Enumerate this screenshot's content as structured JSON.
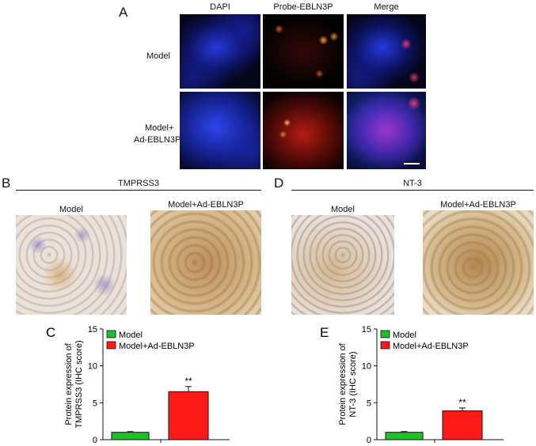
{
  "panel_a": {
    "letter": "A",
    "columns": [
      "DAPI",
      "Probe-EBLN3P",
      "Merge"
    ],
    "rows": [
      {
        "label_lines": [
          "Model"
        ]
      },
      {
        "label_lines": [
          "Model+",
          "Ad-EBLN3P"
        ]
      }
    ]
  },
  "panel_b": {
    "letter": "B",
    "title": "TMPRSS3",
    "images": [
      "Model",
      "Model+Ad-EBLN3P"
    ]
  },
  "panel_d": {
    "letter": "D",
    "title": "NT-3",
    "images": [
      "Model",
      "Model+Ad-EBLN3P"
    ]
  },
  "colors": {
    "model": "#1fbf2a",
    "ad": "#ff1a1a"
  },
  "chart_data": [
    {
      "panel": "C",
      "type": "bar",
      "categories": [
        "Model",
        "Model+Ad-EBLN3P"
      ],
      "values": [
        1.0,
        6.5
      ],
      "errors": [
        0.1,
        0.7
      ],
      "significance": [
        "",
        "**"
      ],
      "ylabel_lines": [
        "Protein expression of",
        "TMPRSS3 (IHC score)"
      ],
      "ylim": [
        0,
        15
      ],
      "yticks": [
        0,
        5,
        10,
        15
      ],
      "legend": [
        "Model",
        "Model+Ad-EBLN3P"
      ],
      "legend_position": "top-left"
    },
    {
      "panel": "E",
      "type": "bar",
      "categories": [
        "Model",
        "Model+Ad-EBLN3P"
      ],
      "values": [
        1.0,
        3.9
      ],
      "errors": [
        0.1,
        0.4
      ],
      "significance": [
        "",
        "**"
      ],
      "ylabel_lines": [
        "Protein expression of",
        "NT-3 (IHC score)"
      ],
      "ylim": [
        0,
        15
      ],
      "yticks": [
        0,
        5,
        10,
        15
      ],
      "legend": [
        "Model",
        "Model+Ad-EBLN3P"
      ],
      "legend_position": "top-left"
    }
  ]
}
